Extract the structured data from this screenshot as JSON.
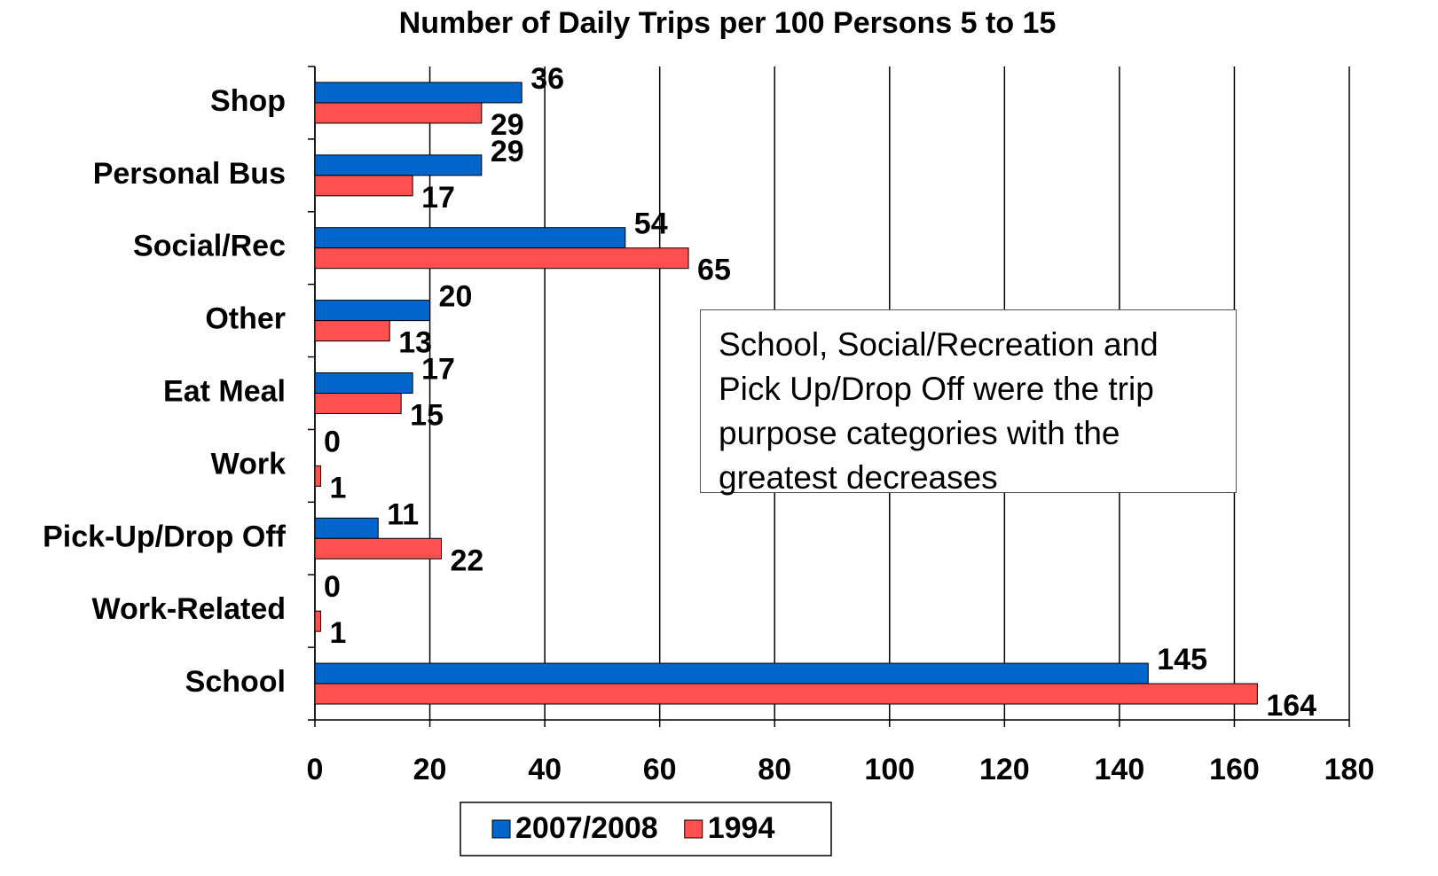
{
  "chart_data": {
    "type": "hbar",
    "title": "Number of Daily Trips per 100 Persons 5 to 15",
    "categories": [
      "Shop",
      "Personal Bus",
      "Social/Rec",
      "Other",
      "Eat Meal",
      "Work",
      "Pick-Up/Drop Off",
      "Work-Related",
      "School"
    ],
    "series": [
      {
        "name": "2007/2008",
        "color": "#0066cc",
        "values": [
          36,
          29,
          54,
          20,
          17,
          0,
          11,
          0,
          145
        ]
      },
      {
        "name": "1994",
        "color": "#ff5050",
        "values": [
          29,
          17,
          65,
          13,
          15,
          1,
          22,
          1,
          164
        ]
      }
    ],
    "xlim": [
      0,
      180
    ],
    "xticks": [
      0,
      20,
      40,
      60,
      80,
      100,
      120,
      140,
      160,
      180
    ],
    "grid": true,
    "legend": "bottom",
    "annotation": "School, Social/Recreation and Pick Up/Drop Off were the trip purpose categories with the greatest decreases"
  }
}
